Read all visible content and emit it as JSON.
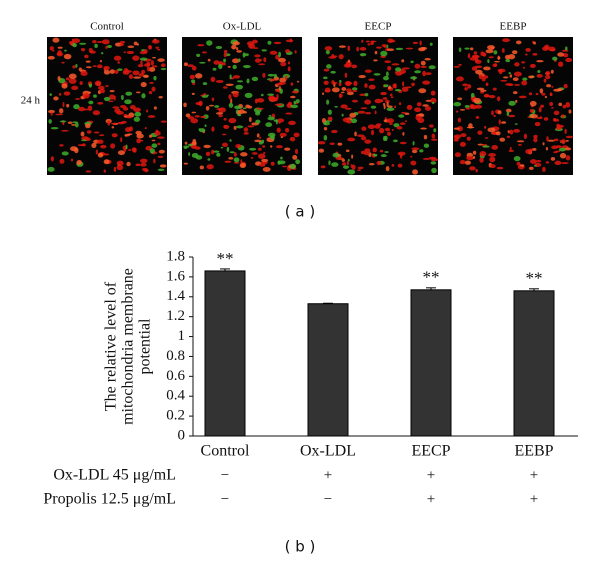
{
  "panel_a": {
    "columns": [
      "Control",
      "Ox-LDL",
      "EECP",
      "EEBP"
    ],
    "row_label": "24 h",
    "caption": "( a )"
  },
  "chart_data": {
    "type": "bar",
    "y_label": [
      "The relative level of",
      "mitochondria membrane",
      "potential"
    ],
    "categories": [
      "Control",
      "Ox-LDL",
      "EECP",
      "EEBP"
    ],
    "values": [
      1.66,
      1.33,
      1.47,
      1.46
    ],
    "errors": [
      0.02,
      0.005,
      0.02,
      0.02
    ],
    "significance": [
      "**",
      null,
      "**",
      "**"
    ],
    "color": "#333333",
    "ylim": [
      0,
      1.8
    ],
    "yticks": [
      0,
      0.2,
      0.4,
      0.6,
      0.8,
      1,
      1.2,
      1.4,
      1.6,
      1.8
    ],
    "treatments": [
      {
        "name": "Ox-LDL 45 μg/mL",
        "marks": [
          "−",
          "+",
          "+",
          "+"
        ]
      },
      {
        "name": "Propolis 12.5 μg/mL",
        "marks": [
          "−",
          "−",
          "+",
          "+"
        ]
      }
    ],
    "caption": "( b )"
  }
}
